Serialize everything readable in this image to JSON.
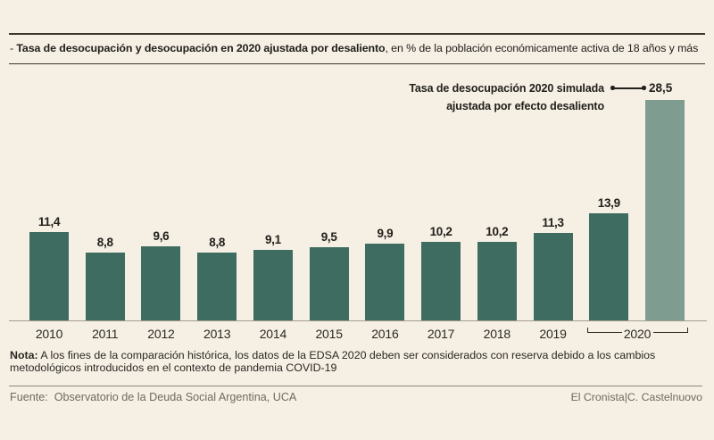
{
  "title": {
    "bullet": "- ",
    "bold": "Tasa de desocupación y desocupación en 2020 ajustada por desaliento",
    "rest": ", en % de la población económicamente activa de 18 años y más"
  },
  "annotation": {
    "line1": "Tasa de desocupación 2020 simulada",
    "line2": "ajustada por efecto desaliento",
    "value_label": "28,5"
  },
  "chart_data": {
    "type": "bar",
    "categories": [
      "2010",
      "2011",
      "2012",
      "2013",
      "2014",
      "2015",
      "2016",
      "2017",
      "2018",
      "2019",
      "2020",
      "2020 simulada ajustada por desaliento"
    ],
    "values": [
      11.4,
      8.8,
      9.6,
      8.8,
      9.1,
      9.5,
      9.9,
      10.2,
      10.2,
      11.3,
      13.9,
      28.5
    ],
    "value_labels": [
      "11,4",
      "8,8",
      "9,6",
      "8,8",
      "9,1",
      "9,5",
      "9,9",
      "10,2",
      "10,2",
      "11,3",
      "13,9",
      "28,5"
    ],
    "bar_color": "#3e6c60",
    "highlight_color": "#7f9c91",
    "highlight_index": 11,
    "group_label": "2020",
    "ylim": [
      0,
      28.5
    ],
    "grid": false,
    "legend": false
  },
  "note": {
    "label": "Nota:",
    "line1": " A los fines de la comparación histórica, los datos de la EDSA 2020 deben ser considerados con reserva debido a los cambios",
    "line2": "metodológicos introducidos en el contexto de pandemia COVID-19"
  },
  "footer": {
    "source": "Fuente:  Observatorio de la Deuda Social Argentina, UCA",
    "credit": "El Cronista|C. Castelnuovo"
  }
}
